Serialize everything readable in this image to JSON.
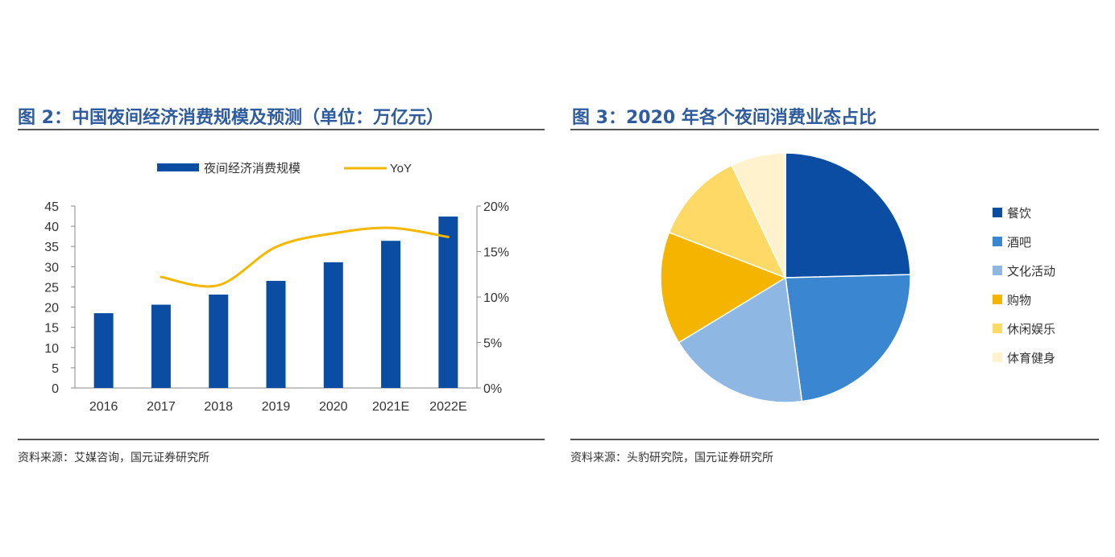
{
  "figure2": {
    "title": "图 2：中国夜间经济消费规模及预测（单位：万亿元）",
    "source": "资料来源：艾媒咨询，国元证券研究所"
  },
  "figure3": {
    "title": "图 3：2020 年各个夜间消费业态占比",
    "source": "资料来源：头豹研究院，国元证券研究所"
  },
  "chart_data": [
    {
      "type": "bar",
      "title": "图 2：中国夜间经济消费规模及预测（单位：万亿元）",
      "categories": [
        "2016",
        "2017",
        "2018",
        "2019",
        "2020",
        "2021E",
        "2022E"
      ],
      "series": [
        {
          "name": "夜间经济消费规模",
          "type": "bar",
          "axis": "left",
          "color": "#0B4DA2",
          "values": [
            18.5,
            20.6,
            23.1,
            26.5,
            31.1,
            36.4,
            42.4
          ]
        },
        {
          "name": "YoY",
          "type": "line",
          "axis": "right",
          "color": "#F5B700",
          "values": [
            null,
            0.122,
            0.113,
            0.155,
            0.17,
            0.176,
            0.166
          ]
        }
      ],
      "ylim": [
        0,
        45
      ],
      "yticks": [
        "0",
        "5",
        "10",
        "15",
        "20",
        "25",
        "30",
        "35",
        "40",
        "45"
      ],
      "y2lim": [
        0,
        0.2
      ],
      "y2ticks": [
        "0%",
        "5%",
        "10%",
        "15%",
        "20%"
      ],
      "legend": "top-center",
      "grid": false
    },
    {
      "type": "pie",
      "title": "图 3：2020 年各个夜间消费业态占比",
      "labels": [
        "餐饮",
        "酒吧",
        "文化活动",
        "购物",
        "休闲娱乐",
        "体育健身"
      ],
      "values": [
        24.6,
        23.3,
        18.4,
        14.6,
        12.0,
        7.1
      ],
      "colors": [
        "#0B4DA2",
        "#3A86D0",
        "#8EB8E3",
        "#F5B400",
        "#FFD966",
        "#FFF2CC"
      ],
      "legend": "right"
    }
  ]
}
